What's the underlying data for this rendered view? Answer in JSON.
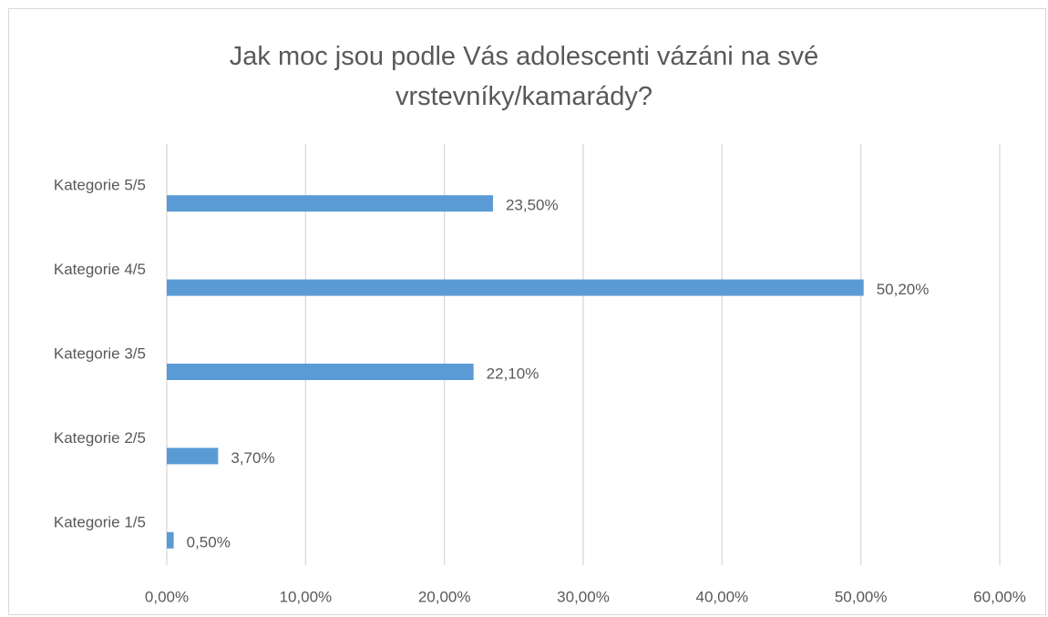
{
  "chart_data": {
    "type": "barh",
    "title": "Jak moc jsou podle Vás adolescenti vázáni na své vrstevníky/kamarády?",
    "categories": [
      "Kategorie 1/5",
      "Kategorie 2/5",
      "Kategorie 3/5",
      "Kategorie 4/5",
      "Kategorie 5/5"
    ],
    "values": [
      0.5,
      3.7,
      22.1,
      50.2,
      23.5
    ],
    "value_labels": [
      "0,50%",
      "3,70%",
      "22,10%",
      "50,20%",
      "23,50%"
    ],
    "color": "#5b9bd5",
    "xlim": [
      0,
      60
    ],
    "xticks": [
      {
        "value": 0,
        "label": "0,00%"
      },
      {
        "value": 10,
        "label": "10,00%"
      },
      {
        "value": 20,
        "label": "20,00%"
      },
      {
        "value": 30,
        "label": "30,00%"
      },
      {
        "value": 40,
        "label": "40,00%"
      },
      {
        "value": 50,
        "label": "50,00%"
      },
      {
        "value": 60,
        "label": "60,00%"
      }
    ],
    "grid": true
  }
}
